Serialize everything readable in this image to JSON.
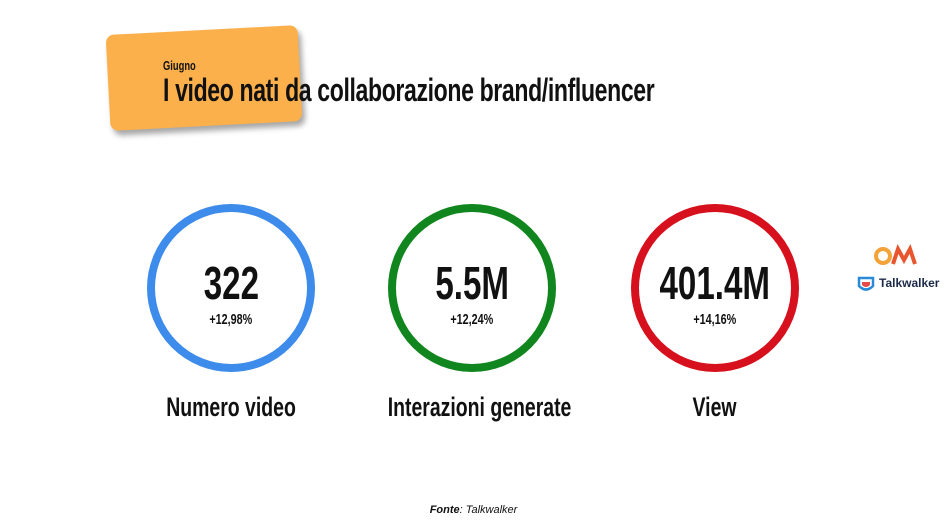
{
  "header": {
    "kicker": "Giugno",
    "title": "I video nati da collaborazione brand/influencer",
    "note_color": "#fbb04c"
  },
  "kpis": [
    {
      "value": "322",
      "change": "+12,98%",
      "label": "Numero video",
      "color": "#3d8bea"
    },
    {
      "value": "5.5M",
      "change": "+12,24%",
      "label": "Interazioni generate",
      "color": "#11861f"
    },
    {
      "value": "401.4M",
      "change": "+14,16%",
      "label": "View",
      "color": "#d6101c"
    }
  ],
  "logo": {
    "text": "Talkwalker"
  },
  "source": {
    "label": "Fonte",
    "text": ": Talkwalker"
  }
}
